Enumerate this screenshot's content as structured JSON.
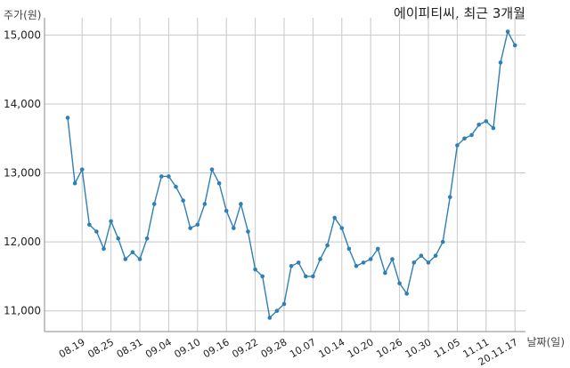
{
  "chart_data": {
    "type": "line",
    "title": "에이피티씨, 최근 3개월",
    "ylabel": "주가(원)",
    "xlabel": "날짜(일)",
    "ylim": [
      10700,
      15250
    ],
    "yticks": [
      11000,
      12000,
      13000,
      14000,
      15000
    ],
    "ytick_labels": [
      "11,000",
      "12,000",
      "13,000",
      "14,000",
      "15,000"
    ],
    "xtick_labels": [
      "08.19",
      "08.25",
      "08.31",
      "09.04",
      "09.10",
      "09.16",
      "09.22",
      "09.28",
      "10.07",
      "10.14",
      "10.20",
      "10.26",
      "10.30",
      "11.05",
      "11.11",
      "20.11.17"
    ],
    "xtick_index": [
      2,
      6,
      10,
      14,
      18,
      22,
      26,
      30,
      34,
      38,
      42,
      46,
      50,
      54,
      58,
      62
    ],
    "grid": true,
    "color": "#2f7fb5",
    "series": [
      {
        "values": [
          13800,
          12850,
          13050,
          12250,
          12150,
          11900,
          12300,
          12050,
          11750,
          11850,
          11750,
          12050,
          12550,
          12950,
          12950,
          12800,
          12600,
          12200,
          12250,
          12550,
          13050,
          12850,
          12450,
          12200,
          12550,
          12150,
          11600,
          11500,
          10900,
          11000,
          11100,
          11650,
          11700,
          11500,
          11500,
          11750,
          11950,
          12350,
          12200,
          11900,
          11650,
          11700,
          11750,
          11900,
          11550,
          11750,
          11400,
          11250,
          11700,
          11800,
          11700,
          11800,
          12000,
          12650,
          13400,
          13500,
          13550,
          13700,
          13750,
          13650,
          14600,
          15050,
          14850
        ]
      }
    ]
  }
}
